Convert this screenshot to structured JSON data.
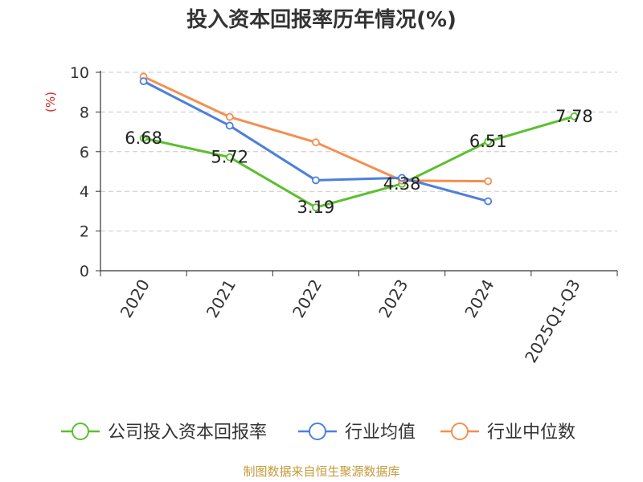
{
  "chart_data": {
    "type": "line",
    "title": "投入资本回报率历年情况(%)",
    "ylabel": "(%)",
    "ylim": [
      0,
      10
    ],
    "yticks": [
      0,
      2,
      4,
      6,
      8,
      10
    ],
    "grid": true,
    "legend_position": "bottom",
    "categories": [
      "2020",
      "2021",
      "2022",
      "2023",
      "2024",
      "2025Q1-Q3"
    ],
    "series": [
      {
        "name": "公司投入资本回报率",
        "color": "#5cc02e",
        "values": [
          6.68,
          5.72,
          3.19,
          4.38,
          6.51,
          7.78
        ],
        "labels": [
          "6.68",
          "5.72",
          "3.19",
          "4.38",
          "6.51",
          "7.78"
        ]
      },
      {
        "name": "行业均值",
        "color": "#4d7fdc",
        "values": [
          9.55,
          7.31,
          4.56,
          4.68,
          3.5,
          null
        ]
      },
      {
        "name": "行业中位数",
        "color": "#f58f4f",
        "values": [
          9.78,
          7.75,
          6.47,
          4.54,
          4.51,
          null
        ]
      }
    ]
  },
  "source": "制图数据来自恒生聚源数据库"
}
